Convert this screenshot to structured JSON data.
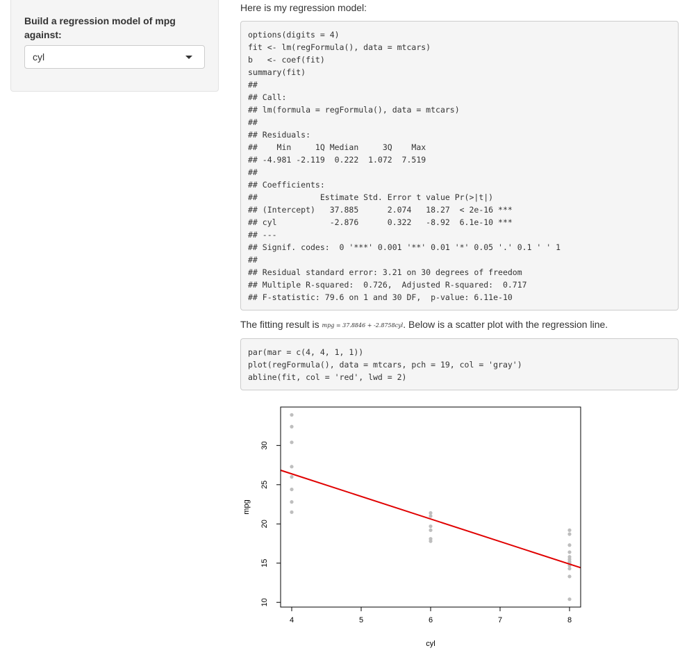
{
  "sidebar": {
    "label": "Build a regression model of mpg against:",
    "select": {
      "value": "cyl"
    }
  },
  "main": {
    "intro": "Here is my regression model:",
    "code_block_1": [
      "options(digits = 4)",
      "fit <- lm(regFormula(), data = mtcars)",
      "b   <- coef(fit)",
      "summary(fit)",
      "##",
      "## Call:",
      "## lm(formula = regFormula(), data = mtcars)",
      "##",
      "## Residuals:",
      "##    Min     1Q Median     3Q    Max",
      "## -4.981 -2.119  0.222  1.072  7.519",
      "##",
      "## Coefficients:",
      "##             Estimate Std. Error t value Pr(>|t|)",
      "## (Intercept)   37.885      2.074   18.27  < 2e-16 ***",
      "## cyl           -2.876      0.322   -8.92  6.1e-10 ***",
      "## ---",
      "## Signif. codes:  0 '***' 0.001 '**' 0.01 '*' 0.05 '.' 0.1 ' ' 1",
      "##",
      "## Residual standard error: 3.21 on 30 degrees of freedom",
      "## Multiple R-squared:  0.726,  Adjusted R-squared:  0.717",
      "## F-statistic: 79.6 on 1 and 30 DF,  p-value: 6.11e-10"
    ],
    "result_text_before": "The fitting result is ",
    "result_formula": "mpg = 37.8846 + -2.8758cyl",
    "result_text_after": ". Below is a scatter plot with the regression line.",
    "code_block_2": [
      "par(mar = c(4, 4, 1, 1))",
      "plot(regFormula(), data = mtcars, pch = 19, col = 'gray')",
      "abline(fit, col = 'red', lwd = 2)"
    ]
  },
  "chart_data": {
    "type": "scatter",
    "xlabel": "cyl",
    "ylabel": "mpg",
    "xlim": [
      3.84,
      8.16
    ],
    "ylim": [
      9.4,
      34.9
    ],
    "x_ticks": [
      "4",
      "5",
      "6",
      "7",
      "8"
    ],
    "y_ticks": [
      "10",
      "15",
      "20",
      "25",
      "30"
    ],
    "point_color": "#bebebe",
    "line_color": "#e00000",
    "points": [
      [
        4,
        33.9
      ],
      [
        4,
        32.4
      ],
      [
        4,
        30.4
      ],
      [
        4,
        27.3
      ],
      [
        4,
        26.0
      ],
      [
        4,
        24.4
      ],
      [
        4,
        22.8
      ],
      [
        4,
        21.5
      ],
      [
        6,
        21.4
      ],
      [
        6,
        21.0
      ],
      [
        6,
        19.7
      ],
      [
        6,
        19.2
      ],
      [
        6,
        18.1
      ],
      [
        6,
        17.8
      ],
      [
        8,
        19.2
      ],
      [
        8,
        18.7
      ],
      [
        8,
        17.3
      ],
      [
        8,
        16.4
      ],
      [
        8,
        15.8
      ],
      [
        8,
        15.5
      ],
      [
        8,
        15.2
      ],
      [
        8,
        15.0
      ],
      [
        8,
        14.7
      ],
      [
        8,
        14.3
      ],
      [
        8,
        13.3
      ],
      [
        8,
        10.4
      ]
    ],
    "regression": {
      "intercept": 37.8846,
      "slope": -2.8758
    }
  }
}
